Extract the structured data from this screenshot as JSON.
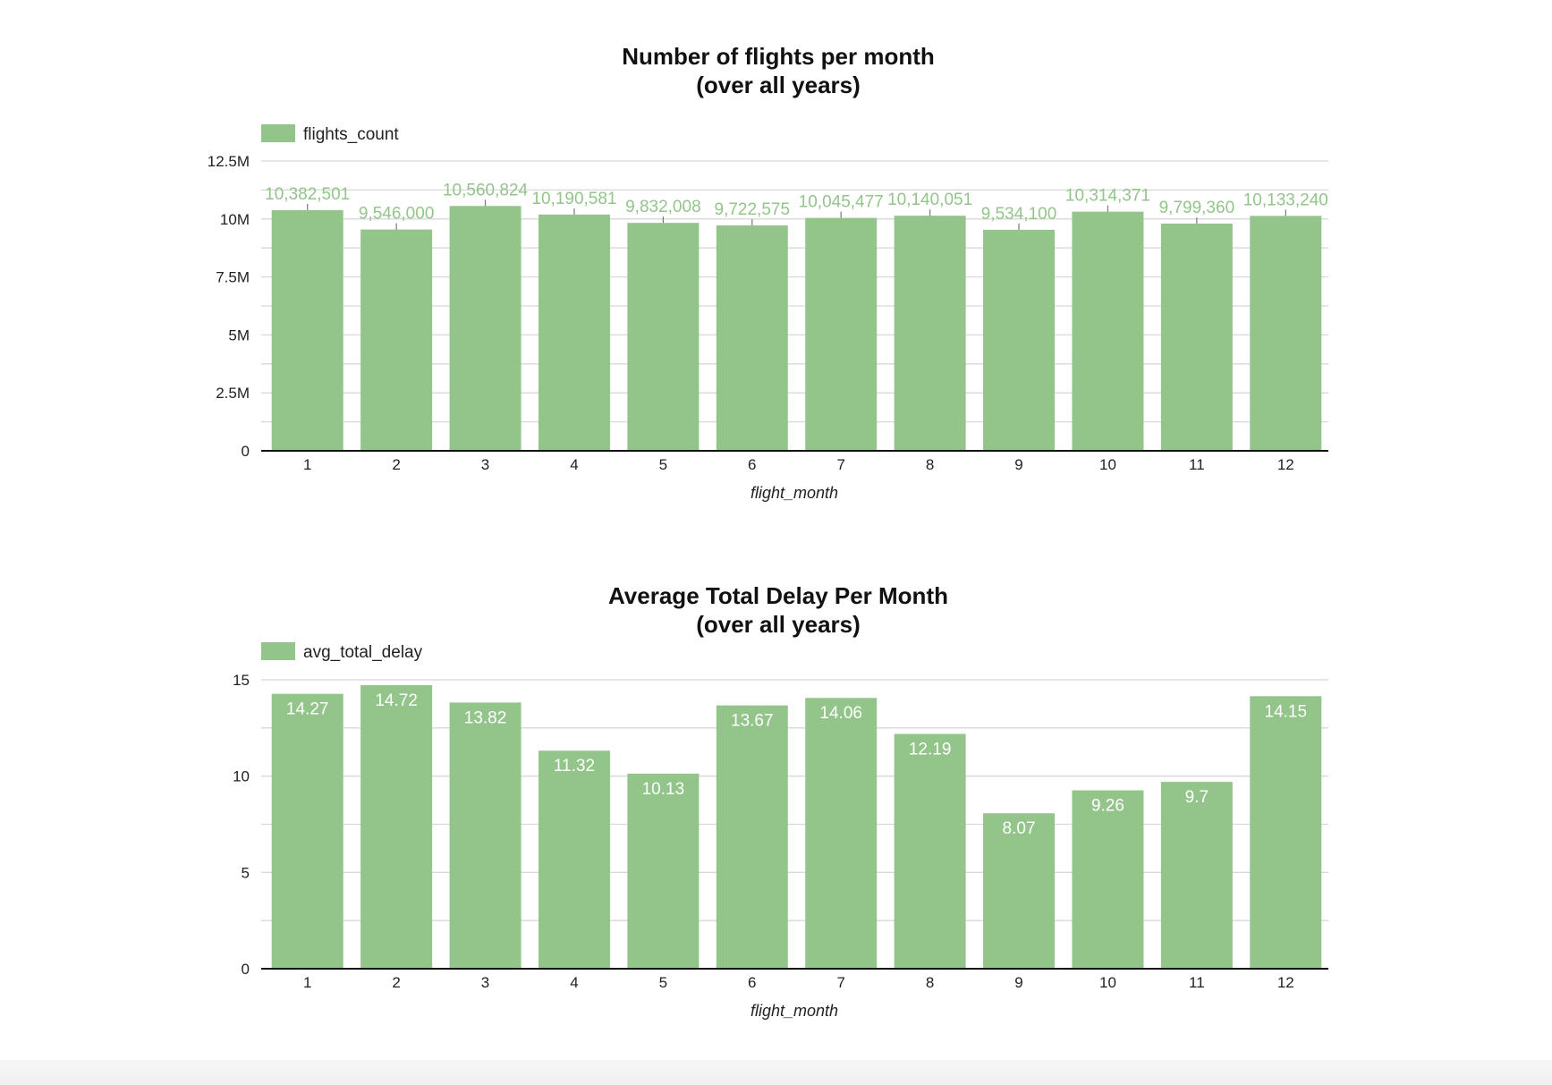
{
  "colors": {
    "bar": "#93c58b",
    "grid": "#d8d8d8",
    "axis": "#111111",
    "label_out": "#93c58b",
    "label_in": "#ffffff"
  },
  "chart_data": [
    {
      "type": "bar",
      "title_lines": [
        "Number of flights per month",
        "(over all years)"
      ],
      "legend": "flights_count",
      "legend_position": "top-left",
      "xlabel": "flight_month",
      "ylabel": "",
      "categories": [
        "1",
        "2",
        "3",
        "4",
        "5",
        "6",
        "7",
        "8",
        "9",
        "10",
        "11",
        "12"
      ],
      "values": [
        10382501,
        9546000,
        10560824,
        10190581,
        9832008,
        9722575,
        10045477,
        10140051,
        9534100,
        10314371,
        9799360,
        10133240
      ],
      "value_labels": [
        "10,382,501",
        "9,546,000",
        "10,560,824",
        "10,190,581",
        "9,832,008",
        "9,722,575",
        "10,045,477",
        "10,140,051",
        "9,534,100",
        "10,314,371",
        "9,799,360",
        "10,133,240"
      ],
      "label_position": "outside",
      "ylim": [
        0,
        12500000
      ],
      "yticks": [
        0,
        2500000,
        5000000,
        7500000,
        10000000,
        12500000
      ],
      "ytick_labels": [
        "0",
        "2.5M",
        "5M",
        "7.5M",
        "10M",
        "12.5M"
      ],
      "grid": true
    },
    {
      "type": "bar",
      "title_lines": [
        "Average Total Delay Per Month",
        "(over all years)"
      ],
      "legend": "avg_total_delay",
      "legend_position": "top-left",
      "xlabel": "flight_month",
      "ylabel": "",
      "categories": [
        "1",
        "2",
        "3",
        "4",
        "5",
        "6",
        "7",
        "8",
        "9",
        "10",
        "11",
        "12"
      ],
      "values": [
        14.27,
        14.72,
        13.82,
        11.32,
        10.13,
        13.67,
        14.06,
        12.19,
        8.07,
        9.26,
        9.7,
        14.15
      ],
      "value_labels": [
        "14.27",
        "14.72",
        "13.82",
        "11.32",
        "10.13",
        "13.67",
        "14.06",
        "12.19",
        "8.07",
        "9.26",
        "9.7",
        "14.15"
      ],
      "label_position": "inside",
      "ylim": [
        0,
        15
      ],
      "yticks": [
        0,
        5,
        10,
        15
      ],
      "ytick_labels": [
        "0",
        "5",
        "10",
        "15"
      ],
      "grid": true
    }
  ]
}
